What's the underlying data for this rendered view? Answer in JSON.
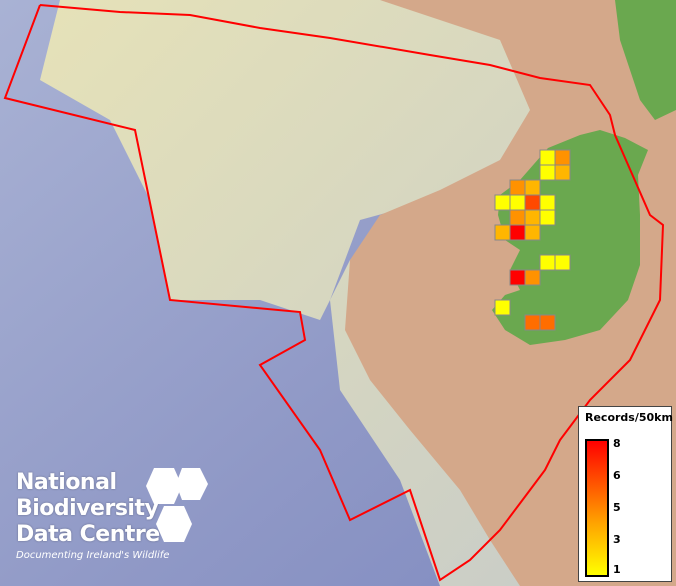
{
  "map": {
    "grid_resolution": "50km",
    "colors": {
      "sea_deep": "#8f9ac8",
      "sea_shelf": "#d8d6b0",
      "land": "#d4a88a",
      "ireland": "#6aa84f",
      "boundary": "#ff0000",
      "cell_border": "#888888"
    },
    "cells": [
      {
        "row": 0,
        "col": 3,
        "records": 1
      },
      {
        "row": 0,
        "col": 4,
        "records": 4
      },
      {
        "row": 1,
        "col": 3,
        "records": 1
      },
      {
        "row": 1,
        "col": 4,
        "records": 3
      },
      {
        "row": 2,
        "col": 1,
        "records": 4
      },
      {
        "row": 2,
        "col": 2,
        "records": 3
      },
      {
        "row": 3,
        "col": 0,
        "records": 1
      },
      {
        "row": 3,
        "col": 1,
        "records": 1
      },
      {
        "row": 3,
        "col": 2,
        "records": 6
      },
      {
        "row": 3,
        "col": 3,
        "records": 1
      },
      {
        "row": 4,
        "col": 1,
        "records": 4
      },
      {
        "row": 4,
        "col": 2,
        "records": 3
      },
      {
        "row": 4,
        "col": 3,
        "records": 1
      },
      {
        "row": 5,
        "col": 0,
        "records": 3
      },
      {
        "row": 5,
        "col": 1,
        "records": 8
      },
      {
        "row": 5,
        "col": 2,
        "records": 3
      },
      {
        "row": 7,
        "col": 3,
        "records": 1
      },
      {
        "row": 7,
        "col": 4,
        "records": 1
      },
      {
        "row": 8,
        "col": 1,
        "records": 8
      },
      {
        "row": 8,
        "col": 2,
        "records": 4
      },
      {
        "row": 10,
        "col": 0,
        "records": 1
      },
      {
        "row": 11,
        "col": 2,
        "records": 5
      },
      {
        "row": 11,
        "col": 3,
        "records": 5
      }
    ]
  },
  "legend": {
    "title": "Records/50km",
    "ticks": [
      "8",
      "6",
      "5",
      "3",
      "1"
    ],
    "min": 1,
    "max": 8,
    "color_low": "#ffff00",
    "color_high": "#ff0000"
  },
  "logo": {
    "lines": [
      "National",
      "Biodiversity",
      "Data Centre"
    ],
    "tagline": "Documenting Ireland's Wildlife"
  }
}
